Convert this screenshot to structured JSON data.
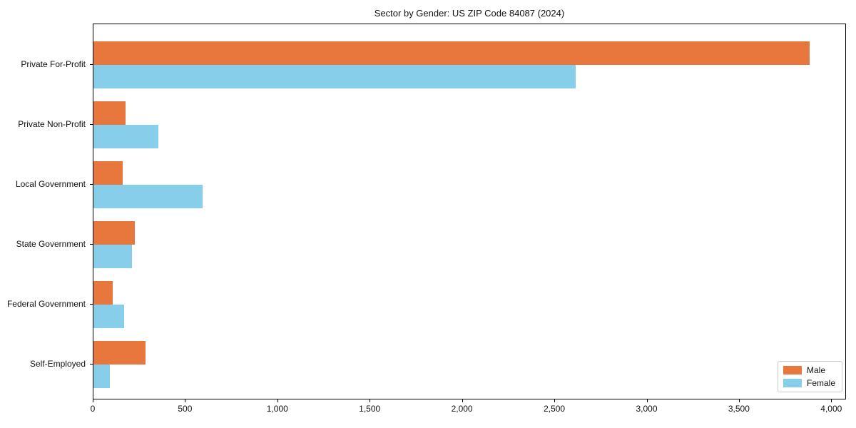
{
  "chart_data": {
    "type": "bar",
    "orientation": "horizontal",
    "title": "Sector by Gender: US ZIP Code 84087 (2024)",
    "categories": [
      "Private For-Profit",
      "Private Non-Profit",
      "Local Government",
      "State Government",
      "Federal Government",
      "Self-Employed"
    ],
    "series": [
      {
        "name": "Male",
        "color": "#e8773d",
        "values": [
          3880,
          175,
          160,
          225,
          105,
          280
        ]
      },
      {
        "name": "Female",
        "color": "#87ceeb",
        "values": [
          2610,
          350,
          590,
          210,
          165,
          90
        ]
      }
    ],
    "xlabel": "",
    "ylabel": "",
    "xlim": [
      0,
      4080
    ],
    "xticks": [
      0,
      500,
      1000,
      1500,
      2000,
      2500,
      3000,
      3500,
      4000
    ],
    "xtick_labels": [
      "0",
      "500",
      "1,000",
      "1,500",
      "2,000",
      "2,500",
      "3,000",
      "3,500",
      "4,000"
    ],
    "grid": false,
    "legend": {
      "position": "lower right"
    }
  }
}
